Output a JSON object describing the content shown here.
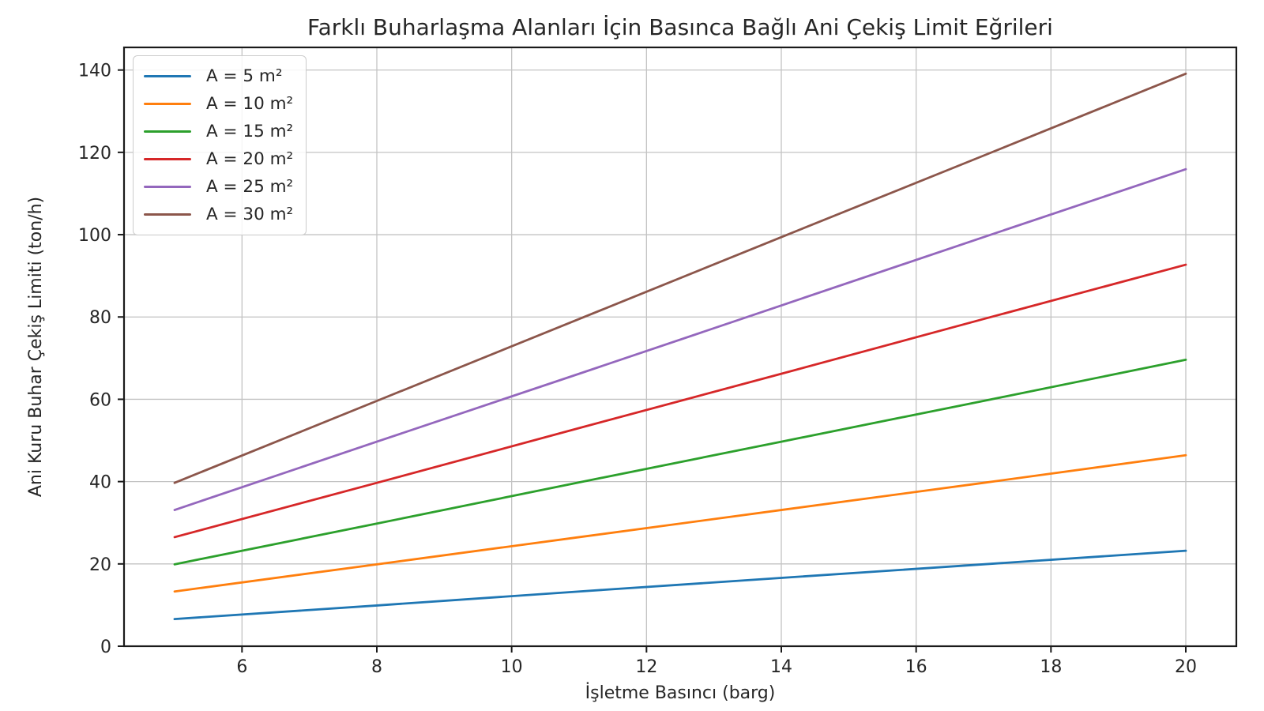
{
  "chart_data": {
    "type": "line",
    "title": "Farklı Buharlaşma Alanları İçin Basınca Bağlı Ani Çekiş Limit Eğrileri",
    "xlabel": "İşletme Basıncı (barg)",
    "ylabel": "Ani Kuru Buhar Çekiş Limiti (ton/h)",
    "x": [
      5,
      8,
      11,
      14,
      17,
      20
    ],
    "series": [
      {
        "name": "A = 5 m²",
        "color": "#1f77b4",
        "values": [
          6.6,
          9.9,
          13.3,
          16.6,
          19.9,
          23.2
        ]
      },
      {
        "name": "A = 10 m²",
        "color": "#ff7f0e",
        "values": [
          13.3,
          19.9,
          26.5,
          33.1,
          39.7,
          46.4
        ]
      },
      {
        "name": "A = 15 m²",
        "color": "#2ca02c",
        "values": [
          19.9,
          29.8,
          39.8,
          49.7,
          59.6,
          69.6
        ]
      },
      {
        "name": "A = 20 m²",
        "color": "#d62728",
        "values": [
          26.5,
          39.7,
          53.0,
          66.2,
          79.5,
          92.7
        ]
      },
      {
        "name": "A = 25 m²",
        "color": "#9467bd",
        "values": [
          33.1,
          49.7,
          66.2,
          82.8,
          99.4,
          115.9
        ]
      },
      {
        "name": "A = 30 m²",
        "color": "#8c564b",
        "values": [
          39.7,
          59.6,
          79.5,
          99.4,
          119.2,
          139.1
        ]
      }
    ],
    "xlim": [
      4.25,
      20.75
    ],
    "ylim": [
      0,
      145.5
    ],
    "xticks": [
      6,
      8,
      10,
      12,
      14,
      16,
      18,
      20
    ],
    "yticks": [
      0,
      20,
      40,
      60,
      80,
      100,
      120,
      140
    ],
    "grid": true,
    "legend_position": "upper left"
  },
  "colors": {
    "grid": "#c3c3c3",
    "spine": "#1a1a1a",
    "text": "#262626"
  }
}
